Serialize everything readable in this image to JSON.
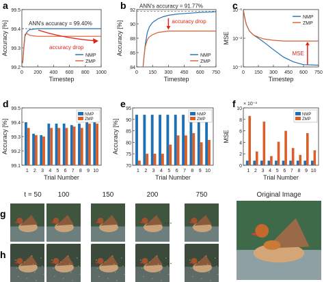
{
  "colors": {
    "nmp": "#1f6fb5",
    "zmp": "#d95f2a",
    "accent": "#e0241b",
    "axis": "#333333"
  },
  "panels": [
    {
      "letter": "a"
    },
    {
      "letter": "b"
    },
    {
      "letter": "c"
    },
    {
      "letter": "d"
    },
    {
      "letter": "e"
    },
    {
      "letter": "f"
    },
    {
      "letter": "g"
    },
    {
      "letter": "h"
    }
  ],
  "chart_data": [
    {
      "id": "a",
      "type": "line",
      "xlabel": "Timestep",
      "ylabel": "Accuracy [%]",
      "xlim": [
        0,
        1000
      ],
      "ylim": [
        99.2,
        99.5
      ],
      "xticks": [
        0,
        200,
        400,
        600,
        800,
        1000
      ],
      "yticks": [
        99.2,
        99.3,
        99.4,
        99.5
      ],
      "ytick_labels": [
        "99.2",
        "99.3",
        "99.4",
        "99.5"
      ],
      "legend": "bottom-right",
      "annotations": [
        "ANN's accuracy = 99.40%",
        "accuracy drop"
      ],
      "reference_line": 99.4,
      "series": [
        {
          "name": "NMP",
          "x": [
            10,
            25,
            40,
            60,
            80,
            100,
            150,
            200,
            300,
            400,
            500,
            600,
            700,
            800,
            900,
            1000
          ],
          "y": [
            99.22,
            99.3,
            99.36,
            99.38,
            99.39,
            99.395,
            99.398,
            99.4,
            99.4,
            99.4,
            99.4,
            99.4,
            99.4,
            99.4,
            99.4,
            99.4
          ]
        },
        {
          "name": "ZMP",
          "x": [
            10,
            25,
            40,
            60,
            80,
            100,
            150,
            200,
            300,
            400,
            500,
            600,
            700,
            800,
            900,
            1000
          ],
          "y": [
            99.22,
            99.31,
            99.37,
            99.375,
            99.37,
            99.365,
            99.362,
            99.36,
            99.36,
            99.36,
            99.36,
            99.36,
            99.36,
            99.36,
            99.36,
            99.36
          ]
        }
      ]
    },
    {
      "id": "b",
      "type": "line",
      "xlabel": "Timestep",
      "ylabel": "Accuracy [%]",
      "xlim": [
        0,
        750
      ],
      "ylim": [
        84,
        92
      ],
      "xticks": [
        0,
        150,
        300,
        450,
        600,
        750
      ],
      "yticks": [
        84,
        86,
        88,
        90,
        92
      ],
      "ytick_labels": [
        "84",
        "86",
        "88",
        "90",
        "92"
      ],
      "legend": "bottom-right",
      "annotations": [
        "ANN's accuracy = 91.77%",
        "accuracy drop"
      ],
      "reference_line": 91.77,
      "series": [
        {
          "name": "NMP",
          "x": [
            60,
            70,
            80,
            100,
            120,
            150,
            200,
            250,
            300,
            400,
            500,
            600,
            700,
            750
          ],
          "y": [
            84,
            85.5,
            87,
            88.8,
            89.6,
            90.2,
            90.7,
            91.0,
            91.2,
            91.4,
            91.5,
            91.6,
            91.65,
            91.7
          ]
        },
        {
          "name": "ZMP",
          "x": [
            60,
            70,
            80,
            100,
            120,
            150,
            200,
            250,
            300,
            400,
            500,
            600,
            700,
            750
          ],
          "y": [
            84,
            85.5,
            86.8,
            87.8,
            88.2,
            88.5,
            88.8,
            88.9,
            89.0,
            89.0,
            89.0,
            89.0,
            89.0,
            89.0
          ]
        }
      ]
    },
    {
      "id": "c",
      "type": "line",
      "scale": "log",
      "xlabel": "Timestep",
      "ylabel": "MSE",
      "xlim": [
        0,
        750
      ],
      "ylim": [
        0.001,
        0.1
      ],
      "xticks": [
        0,
        150,
        300,
        450,
        600,
        750
      ],
      "yticks": [
        0.001,
        0.01,
        0.1
      ],
      "ytick_labels": [
        "10⁻³",
        "10⁻²",
        "10⁻¹"
      ],
      "legend": "top-right",
      "annotations": [
        "MSE"
      ],
      "series": [
        {
          "name": "NMP",
          "x": [
            0,
            10,
            30,
            60,
            100,
            150,
            200,
            300,
            400,
            500,
            600,
            750
          ],
          "y": [
            0.1,
            0.06,
            0.03,
            0.018,
            0.013,
            0.01,
            0.0075,
            0.004,
            0.0022,
            0.0015,
            0.0012,
            0.00115
          ]
        },
        {
          "name": "ZMP",
          "x": [
            0,
            10,
            30,
            60,
            100,
            150,
            200,
            300,
            400,
            500,
            600,
            750
          ],
          "y": [
            0.1,
            0.06,
            0.03,
            0.018,
            0.013,
            0.011,
            0.0095,
            0.0085,
            0.008,
            0.008,
            0.008,
            0.008
          ]
        }
      ]
    },
    {
      "id": "d",
      "type": "bar",
      "xlabel": "Trial Number",
      "ylabel": "Accuracy [%]",
      "categories": [
        "1",
        "2",
        "3",
        "4",
        "5",
        "6",
        "7",
        "8",
        "9",
        "10"
      ],
      "ylim": [
        99.1,
        99.5
      ],
      "yticks": [
        99.1,
        99.2,
        99.3,
        99.4,
        99.5
      ],
      "ytick_labels": [
        "99.1",
        "99.2",
        "99.3",
        "99.4",
        "99.5"
      ],
      "legend": "top-right",
      "series": [
        {
          "name": "NMP",
          "values": [
            99.4,
            99.32,
            99.31,
            99.39,
            99.39,
            99.39,
            99.38,
            99.39,
            99.4,
            99.4
          ]
        },
        {
          "name": "ZMP",
          "values": [
            99.36,
            99.31,
            99.3,
            99.36,
            99.36,
            99.36,
            99.37,
            99.36,
            99.39,
            99.39
          ]
        }
      ]
    },
    {
      "id": "e",
      "type": "bar",
      "xlabel": "Trial Number",
      "ylabel": "Accuracy [%]",
      "categories": [
        "1",
        "2",
        "3",
        "4",
        "5",
        "6",
        "7",
        "8",
        "9",
        "10"
      ],
      "ylim": [
        70,
        95
      ],
      "yticks": [
        70,
        75,
        80,
        85,
        90,
        95
      ],
      "ytick_labels": [
        "70",
        "75",
        "80",
        "85",
        "90",
        "95"
      ],
      "legend": "top-right",
      "series": [
        {
          "name": "NMP",
          "values": [
            92,
            92,
            92,
            92,
            92,
            92,
            92,
            92,
            92,
            92
          ]
        },
        {
          "name": "ZMP",
          "values": [
            72,
            75,
            75,
            75,
            79,
            83,
            83,
            84,
            80,
            81
          ]
        }
      ]
    },
    {
      "id": "f",
      "type": "bar",
      "xlabel": "Trial Number",
      "ylabel": "MSE",
      "y_multiplier": "× 10⁻³",
      "categories": [
        "1",
        "2",
        "3",
        "4",
        "5",
        "6",
        "7",
        "8",
        "9",
        "10"
      ],
      "ylim": [
        0,
        10
      ],
      "yticks": [
        0,
        2,
        4,
        6,
        8,
        10
      ],
      "ytick_labels": [
        "0",
        "2",
        "4",
        "6",
        "8",
        "10"
      ],
      "legend": "top-right",
      "series": [
        {
          "name": "NMP",
          "values": [
            0.8,
            0.8,
            0.8,
            0.8,
            0.8,
            0.8,
            0.8,
            0.8,
            0.8,
            0.8
          ]
        },
        {
          "name": "ZMP",
          "values": [
            8.6,
            2.4,
            7.6,
            1.6,
            4.1,
            6.0,
            3.0,
            1.8,
            5.6,
            2.6
          ]
        }
      ]
    }
  ],
  "image_strip": {
    "time_labels": [
      "t = 50",
      "100",
      "150",
      "200",
      "750"
    ],
    "ellipsis": "···",
    "original_label": "Original Image"
  }
}
